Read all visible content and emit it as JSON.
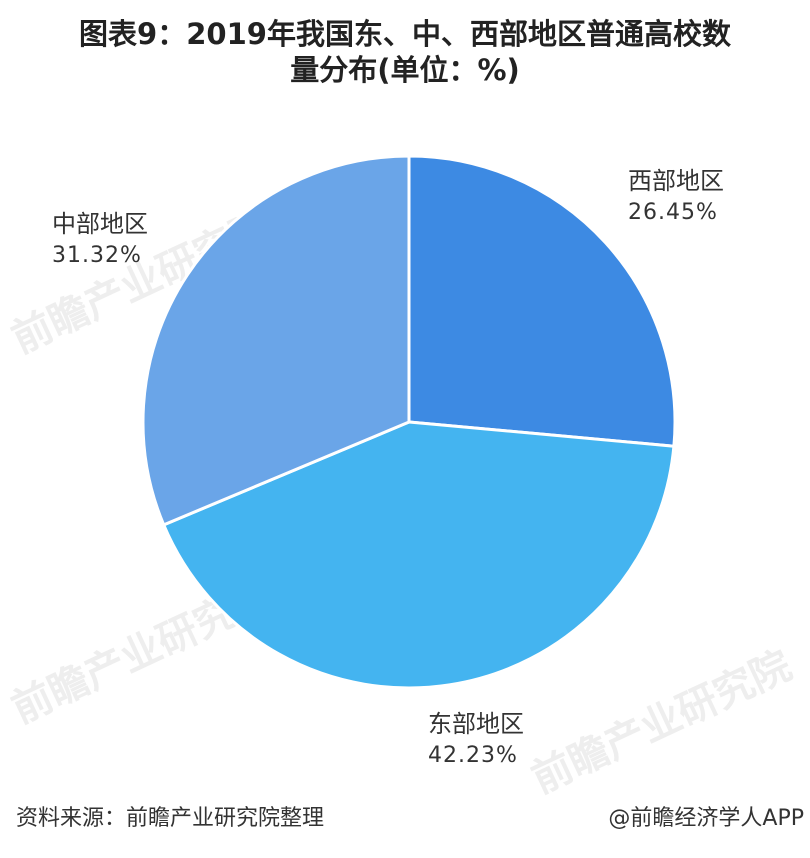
{
  "title": {
    "line1": "图表9：2019年我国东、中、西部地区普通高校数",
    "line2": "量分布(单位：%)"
  },
  "chart_data": {
    "type": "pie",
    "categories": [
      "西部地区",
      "东部地区",
      "中部地区"
    ],
    "values": [
      26.45,
      42.23,
      31.32
    ],
    "value_labels": [
      "26.45%",
      "42.23%",
      "31.32%"
    ],
    "colors": [
      "#3d8ae3",
      "#44b4f0",
      "#6aa5e8"
    ],
    "start_angle_deg": 0,
    "direction": "clockwise"
  },
  "footer": {
    "source": "资料来源：前瞻产业研究院整理",
    "credit": "@前瞻经济学人APP"
  },
  "watermark": {
    "text": "前瞻产业研究院"
  }
}
